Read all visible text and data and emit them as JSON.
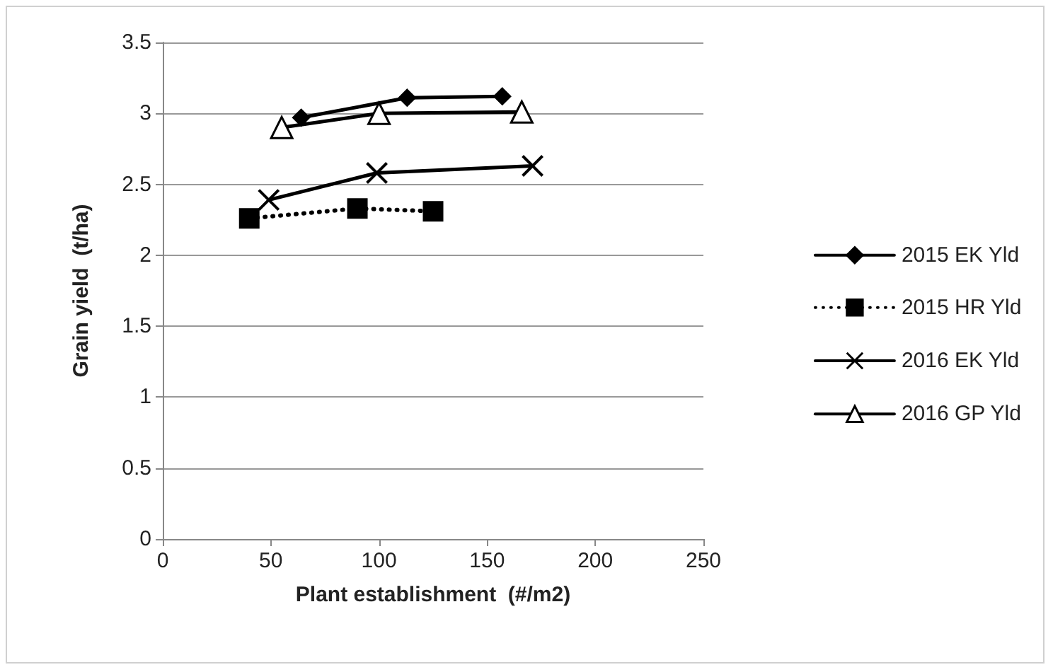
{
  "chart_data": {
    "type": "line",
    "xlabel": "Plant establishment  (#/m2)",
    "ylabel": "Grain yield  (t/ha)",
    "xlim": [
      0,
      250
    ],
    "xticks": [
      0,
      50,
      100,
      150,
      200,
      250
    ],
    "ylim": [
      0,
      3.5
    ],
    "yticks": [
      0,
      0.5,
      1,
      1.5,
      2,
      2.5,
      3,
      3.5
    ],
    "grid": "y",
    "legend": "right",
    "series": [
      {
        "name": "2015 EK Yld",
        "color": "#000000",
        "x": [
          64,
          113,
          157
        ],
        "values": [
          2.97,
          3.11,
          3.12
        ],
        "marker": "diamond",
        "line_style": "solid"
      },
      {
        "name": "2015 HR Yld",
        "color": "#000000",
        "x": [
          40,
          90,
          125
        ],
        "values": [
          2.26,
          2.33,
          2.31
        ],
        "marker": "square",
        "line_style": "dotted"
      },
      {
        "name": "2016 EK Yld",
        "color": "#000000",
        "x": [
          49,
          99,
          171
        ],
        "values": [
          2.39,
          2.58,
          2.63
        ],
        "marker": "cross",
        "line_style": "solid"
      },
      {
        "name": "2016 GP Yld",
        "color": "#000000",
        "x": [
          55,
          100,
          166
        ],
        "values": [
          2.9,
          3.0,
          3.01
        ],
        "marker": "triangle",
        "line_style": "solid"
      }
    ]
  }
}
